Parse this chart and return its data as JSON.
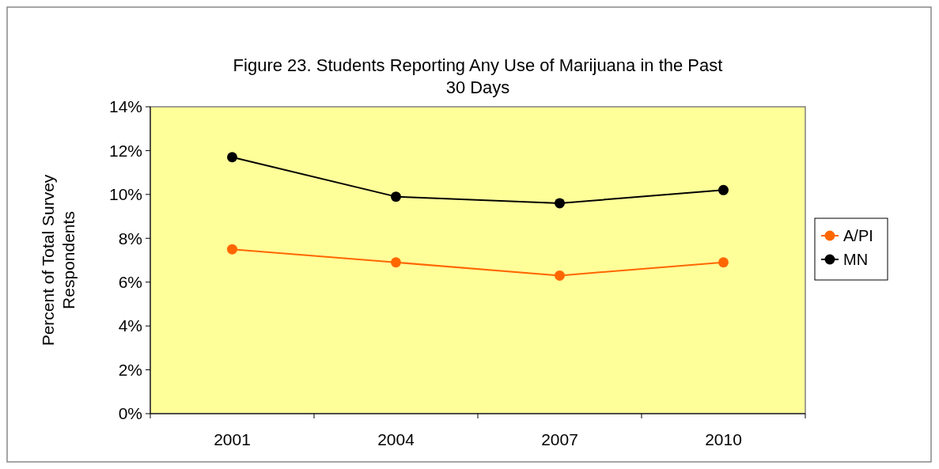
{
  "chart_data": {
    "type": "line",
    "title": "Figure 23. Students Reporting Any Use of Marijuana in the Past 30 Days",
    "ylabel": "Percent of Total Survey Respondents",
    "categories": [
      "2001",
      "2004",
      "2007",
      "2010"
    ],
    "series": [
      {
        "name": "A/PI",
        "color": "#ff6600",
        "values": [
          7.5,
          6.9,
          6.3,
          6.9
        ]
      },
      {
        "name": "MN",
        "color": "#000000",
        "values": [
          11.7,
          9.9,
          9.6,
          10.2
        ]
      }
    ],
    "ylim": [
      0,
      14
    ],
    "yticks": [
      {
        "value": 0,
        "label": "0%"
      },
      {
        "value": 2,
        "label": "2%"
      },
      {
        "value": 4,
        "label": "4%"
      },
      {
        "value": 6,
        "label": "6%"
      },
      {
        "value": 8,
        "label": "8%"
      },
      {
        "value": 10,
        "label": "10%"
      },
      {
        "value": 12,
        "label": "12%"
      },
      {
        "value": 14,
        "label": "14%"
      }
    ],
    "grid": false,
    "legend": "right",
    "marker": "circle",
    "line_style": "solid"
  }
}
